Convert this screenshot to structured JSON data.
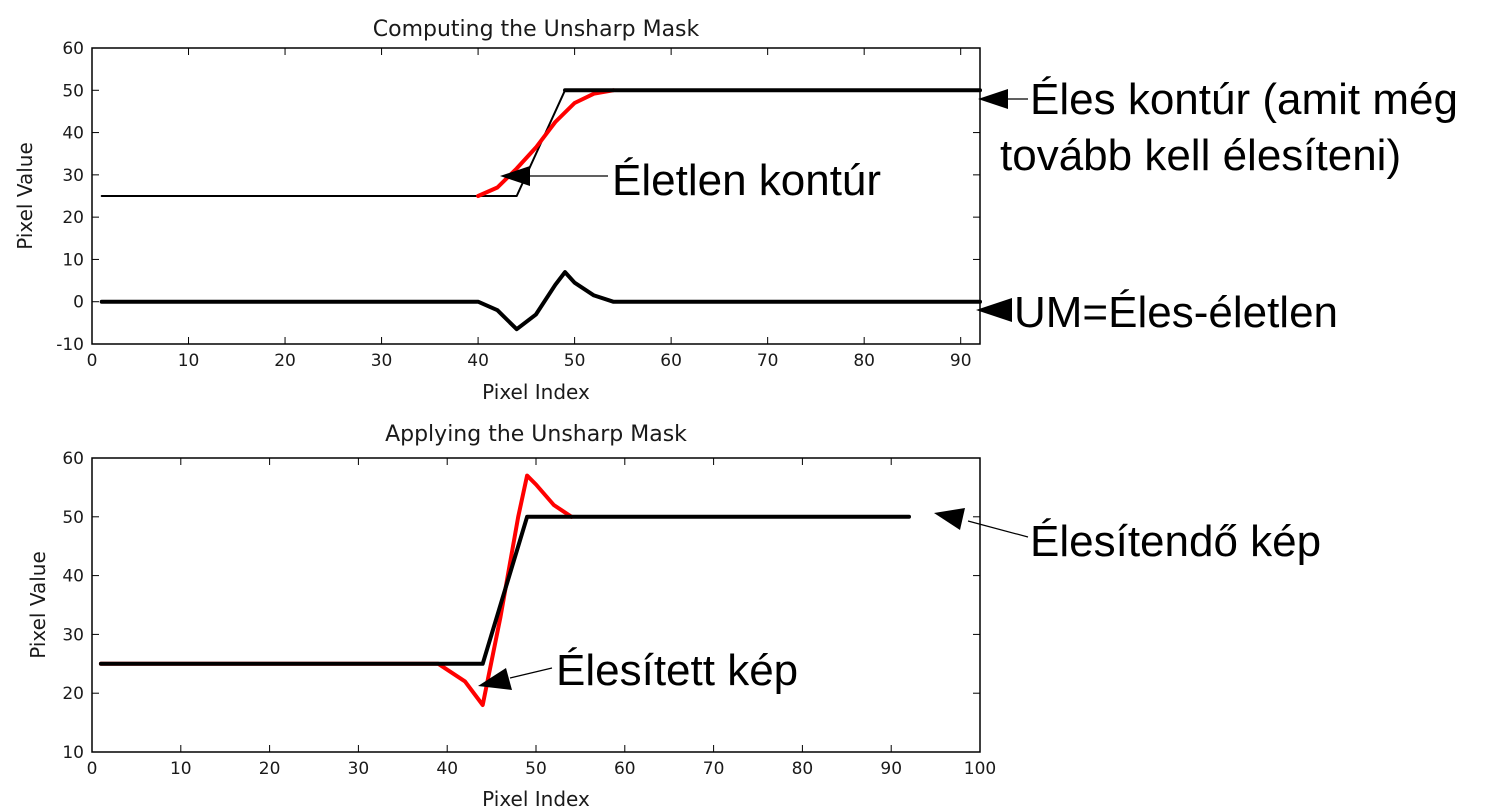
{
  "colors": {
    "black_series": "#000000",
    "red_series": "#ff0000",
    "text": "#1a1a1a",
    "axes": "#000000"
  },
  "chart_data": [
    {
      "type": "line",
      "title": "Computing the Unsharp Mask",
      "xlabel": "Pixel Index",
      "ylabel": "Pixel Value",
      "xlim": [
        0,
        92
      ],
      "ylim": [
        -10,
        60
      ],
      "xticks": [
        "0",
        "10",
        "20",
        "30",
        "40",
        "50",
        "60",
        "70",
        "80",
        "90"
      ],
      "yticks": [
        "-10",
        "0",
        "10",
        "20",
        "30",
        "40",
        "50",
        "60"
      ],
      "grid": false,
      "series": [
        {
          "color": "#000000",
          "width": 2,
          "x": [
            1,
            44,
            49,
            92
          ],
          "y": [
            25,
            25,
            50,
            50
          ]
        },
        {
          "color": "#ff0000",
          "width": 4,
          "x": [
            40,
            42,
            44,
            46,
            48,
            50,
            52,
            54
          ],
          "y": [
            25,
            27,
            31.5,
            36.5,
            42.5,
            47,
            49.2,
            50
          ]
        },
        {
          "color": "#000000",
          "width": 4,
          "x": [
            1,
            40,
            42,
            44,
            46,
            48,
            49,
            50,
            52,
            54,
            92
          ],
          "y": [
            0,
            0,
            -2,
            -6.5,
            -3,
            4,
            7,
            4.5,
            1.5,
            0,
            0
          ]
        },
        {
          "color": "#000000",
          "width": 4,
          "x": [
            49,
            92
          ],
          "y": [
            50,
            50
          ]
        }
      ],
      "annotations": [
        {
          "text": "Életlen kontúr",
          "arrow_to": [
            43,
            30
          ]
        },
        {
          "text": "Éles kontúr (amit még",
          "arrow_to": [
            92,
            50
          ]
        },
        {
          "text": "tovább kell élesíteni)"
        },
        {
          "text": "UM=Éles-életlen",
          "arrow_to": [
            92,
            0
          ]
        }
      ]
    },
    {
      "type": "line",
      "title": "Applying the Unsharp Mask",
      "xlabel": "Pixel Index",
      "ylabel": "Pixel Value",
      "xlim": [
        0,
        100
      ],
      "ylim": [
        10,
        60
      ],
      "xticks": [
        "0",
        "10",
        "20",
        "30",
        "40",
        "50",
        "60",
        "70",
        "80",
        "90",
        "100"
      ],
      "yticks": [
        "10",
        "20",
        "30",
        "40",
        "50",
        "60"
      ],
      "grid": false,
      "series": [
        {
          "color": "#ff0000",
          "width": 4,
          "x": [
            1,
            39,
            42,
            44,
            46,
            48,
            49,
            50,
            52,
            54
          ],
          "y": [
            25,
            25,
            22,
            18,
            33,
            50,
            57,
            55.5,
            52,
            50
          ]
        },
        {
          "color": "#000000",
          "width": 4,
          "x": [
            1,
            44,
            49,
            92
          ],
          "y": [
            25,
            25,
            50,
            50
          ]
        }
      ],
      "annotations": [
        {
          "text": "Élesítendő kép",
          "arrow_to": [
            92,
            50
          ]
        },
        {
          "text": "Élesített kép",
          "arrow_to": [
            44,
            20
          ]
        }
      ]
    }
  ]
}
